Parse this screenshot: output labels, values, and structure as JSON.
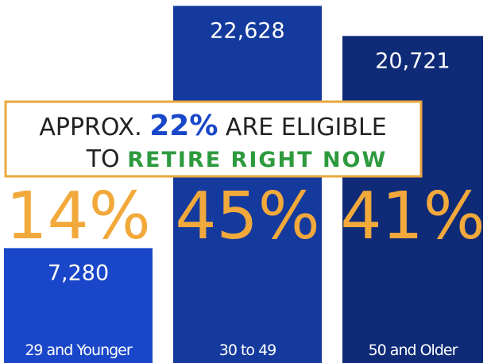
{
  "chart_data": {
    "type": "bar",
    "categories": [
      "29 and Younger",
      "30 to 49",
      "50 and Older"
    ],
    "values": [
      7280,
      22628,
      20721
    ],
    "value_labels": [
      "7,280",
      "22,628",
      "20,721"
    ],
    "colors": [
      "#1a47c9",
      "#153a9e",
      "#0f2b78"
    ],
    "shares": [
      14,
      45,
      41
    ],
    "share_labels": [
      "14%",
      "45%",
      "41%"
    ],
    "ylim": [
      0,
      23000
    ],
    "callout": {
      "line1": [
        "APPROX. ",
        "22%",
        " ARE ELIGIBLE"
      ],
      "line2": [
        "TO ",
        "RETIRE RIGHT NOW"
      ]
    }
  }
}
